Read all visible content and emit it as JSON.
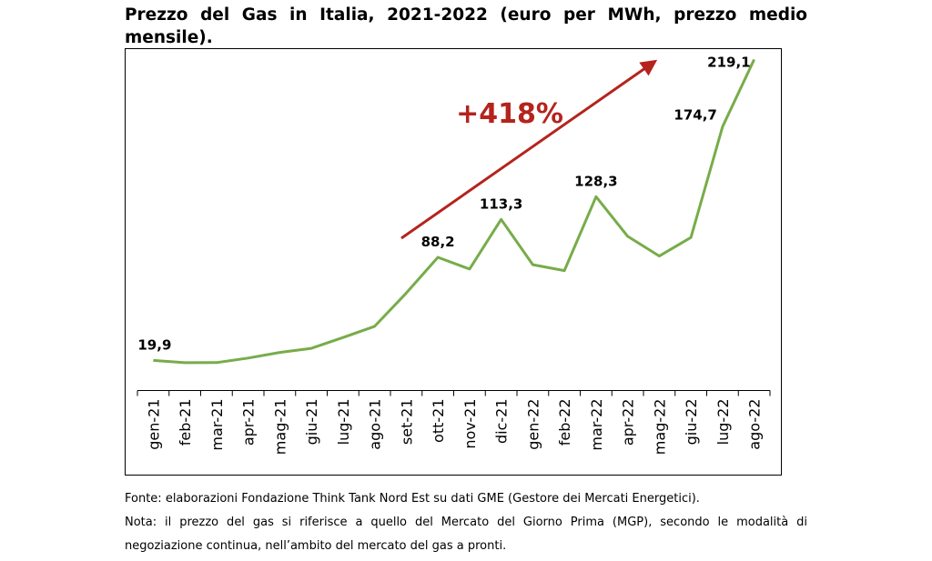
{
  "title": "Prezzo del Gas in Italia, 2021-2022 (euro per MWh, prezzo medio mensile).",
  "notes": {
    "fonte": "Fonte: elaborazioni Fondazione Think Tank Nord Est su dati GME (Gestore dei Mercati Energetici).",
    "nota": "Nota: il prezzo del gas si riferisce a quello del Mercato del Giorno Prima (MGP), secondo le modalità di negoziazione continua, nell’ambito del mercato del gas a pronti."
  },
  "chart_data": {
    "type": "line",
    "title": "Prezzo del Gas in Italia, 2021-2022 (euro per MWh, prezzo medio mensile).",
    "categories": [
      "gen-21",
      "feb-21",
      "mar-21",
      "apr-21",
      "mag-21",
      "giu-21",
      "lug-21",
      "ago-21",
      "set-21",
      "ott-21",
      "nov-21",
      "dic-21",
      "gen-22",
      "feb-22",
      "mar-22",
      "apr-22",
      "mag-22",
      "giu-22",
      "lug-22",
      "ago-22"
    ],
    "series": [
      {
        "values": [
          19.9,
          18.4,
          18.5,
          21.5,
          25.2,
          27.9,
          35.1,
          42.5,
          64.5,
          88.2,
          80.4,
          113.3,
          83.3,
          79.4,
          128.3,
          102.1,
          89.0,
          101.3,
          174.7,
          219.1
        ],
        "color": "#77ac4a"
      }
    ],
    "data_labels": [
      {
        "index": 0,
        "text": "19,9"
      },
      {
        "index": 9,
        "text": "88,2"
      },
      {
        "index": 11,
        "text": "113,3"
      },
      {
        "index": 14,
        "text": "128,3"
      },
      {
        "index": 18,
        "text": "174,7"
      },
      {
        "index": 19,
        "text": "219,1"
      }
    ],
    "annotation": {
      "text": "+418%",
      "color": "#b5231d"
    },
    "ylim": [
      0,
      220
    ],
    "grid": false,
    "legend": "none",
    "xlabel": "",
    "ylabel": ""
  }
}
